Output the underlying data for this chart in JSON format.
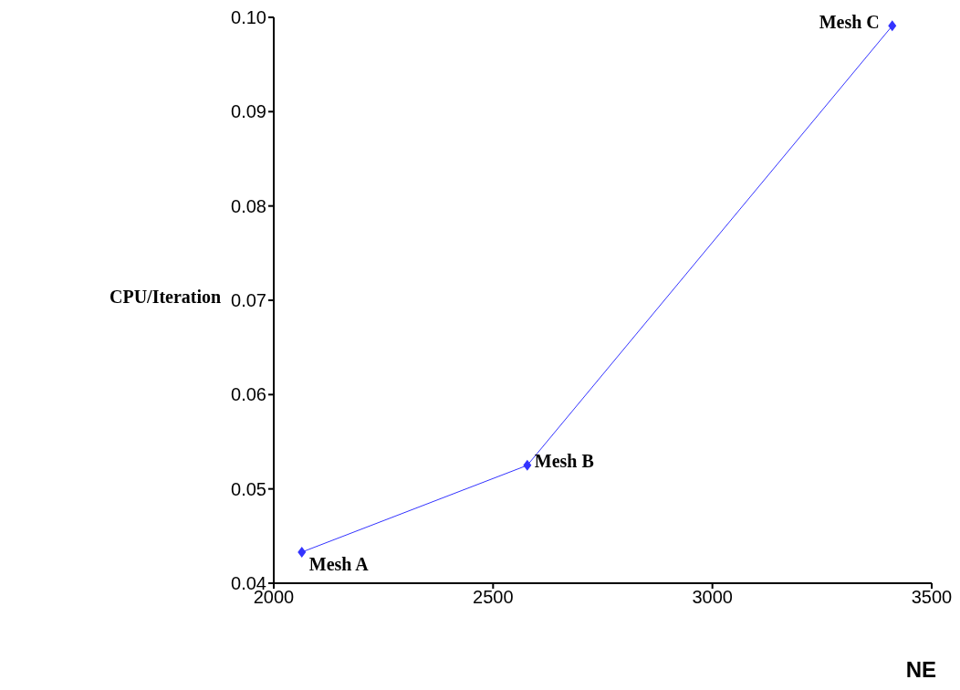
{
  "chart_data": {
    "type": "line",
    "xlabel": "NE",
    "ylabel": "CPU/Iteration",
    "x": [
      2064,
      2578,
      3410
    ],
    "series": [
      {
        "color": "#3333ff",
        "values": [
          0.0433,
          0.0525,
          0.0991
        ]
      }
    ],
    "xlim": [
      2000,
      3500
    ],
    "xticks": [
      2000,
      2500,
      3000,
      3500
    ],
    "ylim": [
      0.04,
      0.1
    ],
    "yticks": [
      0.04,
      0.05,
      0.06,
      0.07,
      0.08,
      0.09,
      {
        "value": 0.1,
        "label": "0.10"
      }
    ],
    "grid": false,
    "marker": "diamond",
    "line_style": "solid",
    "annotations": [
      {
        "text": "Mesh A",
        "x": 2064,
        "y": 0.0433
      },
      {
        "text": "Mesh B",
        "x": 2578,
        "y": 0.0525
      },
      {
        "text": "Mesh C",
        "x": 3410,
        "y": 0.0991
      }
    ]
  }
}
